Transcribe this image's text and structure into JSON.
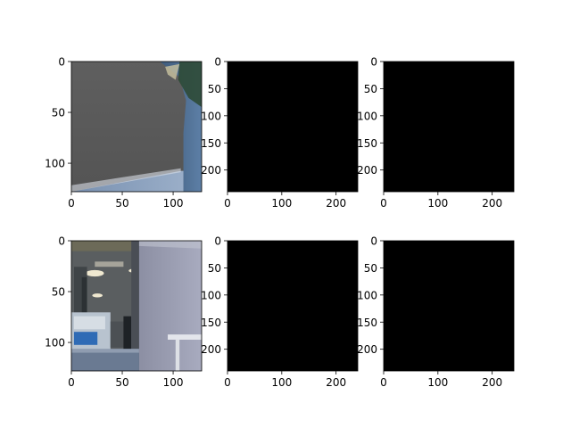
{
  "figure": {
    "background": "#ffffff",
    "axis_color": "#000000"
  },
  "chart_data": [
    {
      "type": "image",
      "content": "rgb-photo",
      "row": 0,
      "col": 0,
      "xlim": [
        0,
        128
      ],
      "ylim": [
        128,
        0
      ],
      "xticks": [
        0,
        50,
        100
      ],
      "yticks": [
        0,
        50,
        100
      ]
    },
    {
      "type": "heatmap",
      "content": "grayscale-mask",
      "row": 0,
      "col": 1,
      "xlim": [
        0,
        240
      ],
      "ylim": [
        240,
        0
      ],
      "xticks": [
        0,
        100,
        200
      ],
      "yticks": [
        0,
        50,
        100,
        150,
        200
      ]
    },
    {
      "type": "heatmap",
      "content": "grayscale-mask",
      "row": 0,
      "col": 2,
      "xlim": [
        0,
        240
      ],
      "ylim": [
        240,
        0
      ],
      "xticks": [
        0,
        100,
        200
      ],
      "yticks": [
        0,
        50,
        100,
        150,
        200
      ]
    },
    {
      "type": "image",
      "content": "rgb-photo",
      "row": 1,
      "col": 0,
      "xlim": [
        0,
        128
      ],
      "ylim": [
        128,
        0
      ],
      "xticks": [
        0,
        50,
        100
      ],
      "yticks": [
        0,
        50,
        100
      ]
    },
    {
      "type": "heatmap",
      "content": "grayscale-mask",
      "row": 1,
      "col": 1,
      "xlim": [
        0,
        240
      ],
      "ylim": [
        240,
        0
      ],
      "xticks": [
        0,
        100,
        200
      ],
      "yticks": [
        0,
        50,
        100,
        150,
        200
      ]
    },
    {
      "type": "heatmap",
      "content": "grayscale-mask",
      "row": 1,
      "col": 2,
      "xlim": [
        0,
        240
      ],
      "ylim": [
        240,
        0
      ],
      "xticks": [
        0,
        100,
        200
      ],
      "yticks": [
        0,
        50,
        100,
        150,
        200
      ]
    }
  ]
}
